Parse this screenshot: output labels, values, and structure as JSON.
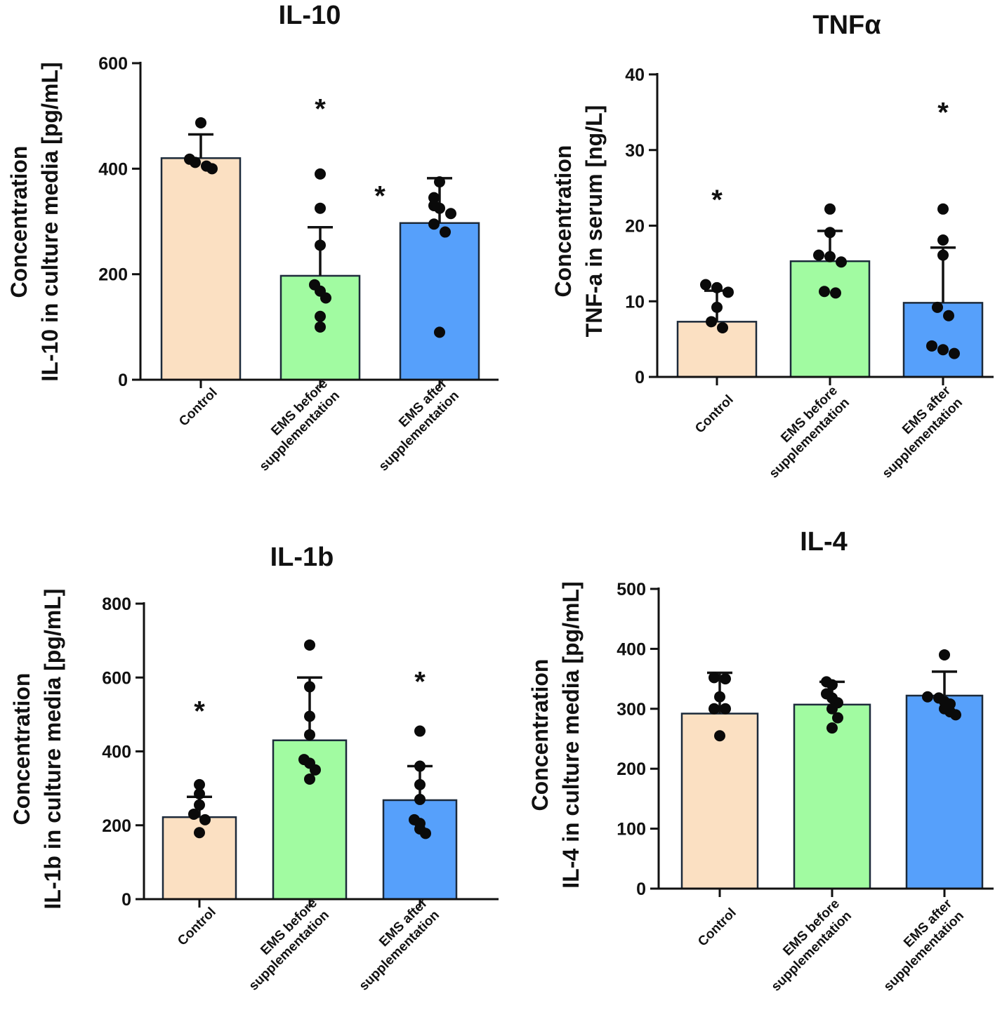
{
  "colors": {
    "control": "#fbe0c2",
    "ems_before": "#a1fba1",
    "ems_after": "#56a0fb",
    "axis": "#111111",
    "points": "#0a0a0a"
  },
  "chart_data": [
    {
      "type": "bar",
      "title": "IL-10",
      "ylabel_line1": "Concentration",
      "ylabel_line2": "IL-10 in culture media [pg/mL]",
      "ylim": [
        0,
        600
      ],
      "yticks": [
        0,
        200,
        400,
        600
      ],
      "categories": [
        {
          "line1": "Control",
          "line2": ""
        },
        {
          "line1": "EMS before",
          "line2": "supplementation"
        },
        {
          "line1": "EMS after",
          "line2": "supplementation"
        }
      ],
      "values": [
        420,
        197,
        297
      ],
      "errors": [
        45,
        92,
        85
      ],
      "points": [
        [
          487,
          418,
          412,
          405,
          400
        ],
        [
          390,
          325,
          255,
          180,
          168,
          155,
          120,
          100
        ],
        [
          375,
          345,
          330,
          325,
          315,
          295,
          280,
          90
        ]
      ],
      "annotations": [
        {
          "text": "*",
          "category": 1,
          "offset": 0,
          "value": 525
        },
        {
          "text": "*",
          "category": 1,
          "offset": 0.5,
          "value": 360
        }
      ]
    },
    {
      "type": "bar",
      "title": "TNFα",
      "ylabel_line1": "Concentration",
      "ylabel_line2": "TNF-a in serum [ng/L]",
      "ylim": [
        0,
        40
      ],
      "yticks": [
        0,
        10,
        20,
        30,
        40
      ],
      "categories": [
        {
          "line1": "Control",
          "line2": ""
        },
        {
          "line1": "EMS before",
          "line2": "supplementation"
        },
        {
          "line1": "EMS after",
          "line2": "supplementation"
        }
      ],
      "values": [
        7.3,
        15.3,
        9.8
      ],
      "errors": [
        4.1,
        4.0,
        7.3
      ],
      "points": [
        [
          12.2,
          11.8,
          11.2,
          9.2,
          7.3,
          6.5
        ],
        [
          22.2,
          19.1,
          16.1,
          15.9,
          15.2,
          11.3,
          11.1
        ],
        [
          22.2,
          18.1,
          16.1,
          9.2,
          8.1,
          4.1,
          3.6,
          3.1
        ]
      ],
      "annotations": [
        {
          "text": "*",
          "category": 0,
          "offset": 0,
          "value": 24.2
        },
        {
          "text": "*",
          "category": 2,
          "offset": 0,
          "value": 35.8
        }
      ]
    },
    {
      "type": "bar",
      "title": "IL-1b",
      "ylabel_line1": "Concentration",
      "ylabel_line2": "IL-1b in culture media [pg/mL]",
      "ylim": [
        0,
        800
      ],
      "yticks": [
        0,
        200,
        400,
        600,
        800
      ],
      "categories": [
        {
          "line1": "Control",
          "line2": ""
        },
        {
          "line1": "EMS before",
          "line2": "supplementation"
        },
        {
          "line1": "EMS after",
          "line2": "supplementation"
        }
      ],
      "values": [
        222,
        430,
        268
      ],
      "errors": [
        55,
        170,
        92
      ],
      "points": [
        [
          310,
          285,
          255,
          230,
          215,
          180
        ],
        [
          688,
          575,
          495,
          445,
          378,
          368,
          350,
          325
        ],
        [
          455,
          360,
          310,
          270,
          215,
          205,
          190,
          178
        ]
      ],
      "annotations": [
        {
          "text": "*",
          "category": 0,
          "offset": 0,
          "value": 525
        },
        {
          "text": "*",
          "category": 2,
          "offset": 0,
          "value": 605
        }
      ]
    },
    {
      "type": "bar",
      "title": "IL-4",
      "ylabel_line1": "Concentration",
      "ylabel_line2": "IL-4 in culture media [pg/mL]",
      "ylim": [
        0,
        500
      ],
      "yticks": [
        0,
        100,
        200,
        300,
        400,
        500
      ],
      "categories": [
        {
          "line1": "Control",
          "line2": ""
        },
        {
          "line1": "EMS before",
          "line2": "supplementation"
        },
        {
          "line1": "EMS after",
          "line2": "supplementation"
        }
      ],
      "values": [
        292,
        307,
        322
      ],
      "errors": [
        68,
        38,
        40
      ],
      "points": [
        [
          352,
          350,
          320,
          300,
          300,
          255
        ],
        [
          345,
          340,
          325,
          318,
          310,
          300,
          285,
          268
        ],
        [
          390,
          320,
          318,
          312,
          308,
          300,
          295,
          290
        ]
      ],
      "annotations": []
    }
  ]
}
